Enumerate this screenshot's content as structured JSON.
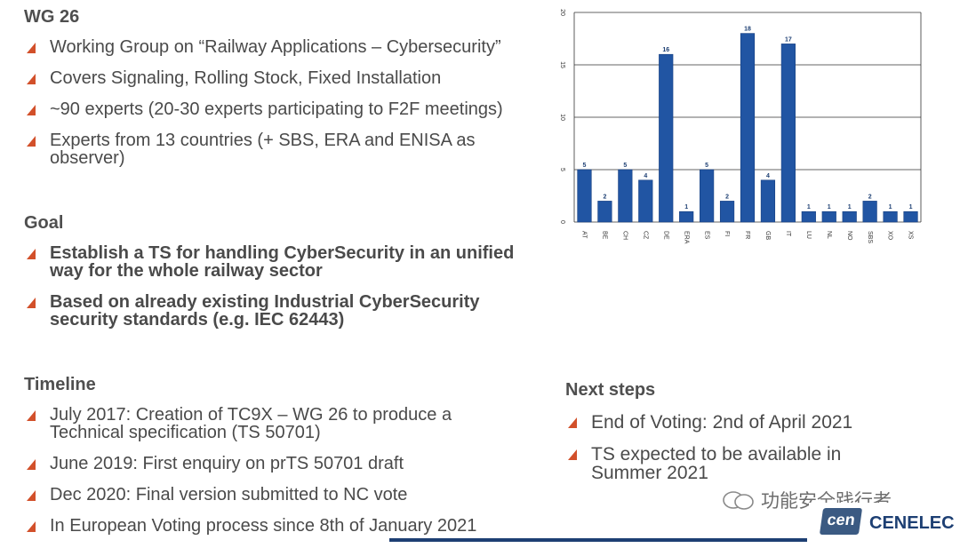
{
  "left": {
    "wg_title": "WG 26",
    "wg_bullets": [
      "Working Group on “Railway Applications – Cybersecurity”",
      "Covers Signaling, Rolling Stock, Fixed Installation",
      "~90 experts (20-30 experts participating to F2F meetings)",
      "Experts from 13 countries (+ SBS, ERA and ENISA as observer)"
    ],
    "goal_title": "Goal",
    "goal_bullets": [
      "Establish a TS for handling CyberSecurity in an unified way for the whole railway sector",
      "Based on already existing Industrial CyberSecurity security standards (e.g. IEC 62443)"
    ],
    "timeline_title": "Timeline",
    "timeline_bullets": [
      "July 2017: Creation of TC9X – WG 26 to produce a Technical specification (TS 50701)",
      "June 2019: First enquiry on prTS 50701 draft",
      "Dec 2020: Final version submitted to NC vote",
      "In European Voting process since 8th of January 2021"
    ]
  },
  "right": {
    "next_title": "Next steps",
    "next_bullets": [
      "End of Voting: 2nd of April 2021",
      "TS expected to be available in Summer 2021"
    ]
  },
  "chart_data": {
    "type": "bar",
    "categories": [
      "AT",
      "BE",
      "CH",
      "CZ",
      "DE",
      "ERA",
      "ES",
      "FI",
      "FR",
      "GB",
      "IT",
      "LU",
      "NL",
      "NO",
      "SBS",
      "XO",
      "XS"
    ],
    "values": [
      5,
      2,
      5,
      4,
      16,
      1,
      5,
      2,
      18,
      4,
      17,
      1,
      1,
      1,
      2,
      1,
      1
    ],
    "ylim": [
      0,
      20
    ],
    "yticks": [
      0,
      5,
      10,
      15,
      20
    ],
    "grid": true,
    "bar_color": "#2155a3"
  },
  "footer": {
    "logo_cen": "cen",
    "logo_cenelec": "CENELEC",
    "watermark": "功能安全践行者"
  }
}
